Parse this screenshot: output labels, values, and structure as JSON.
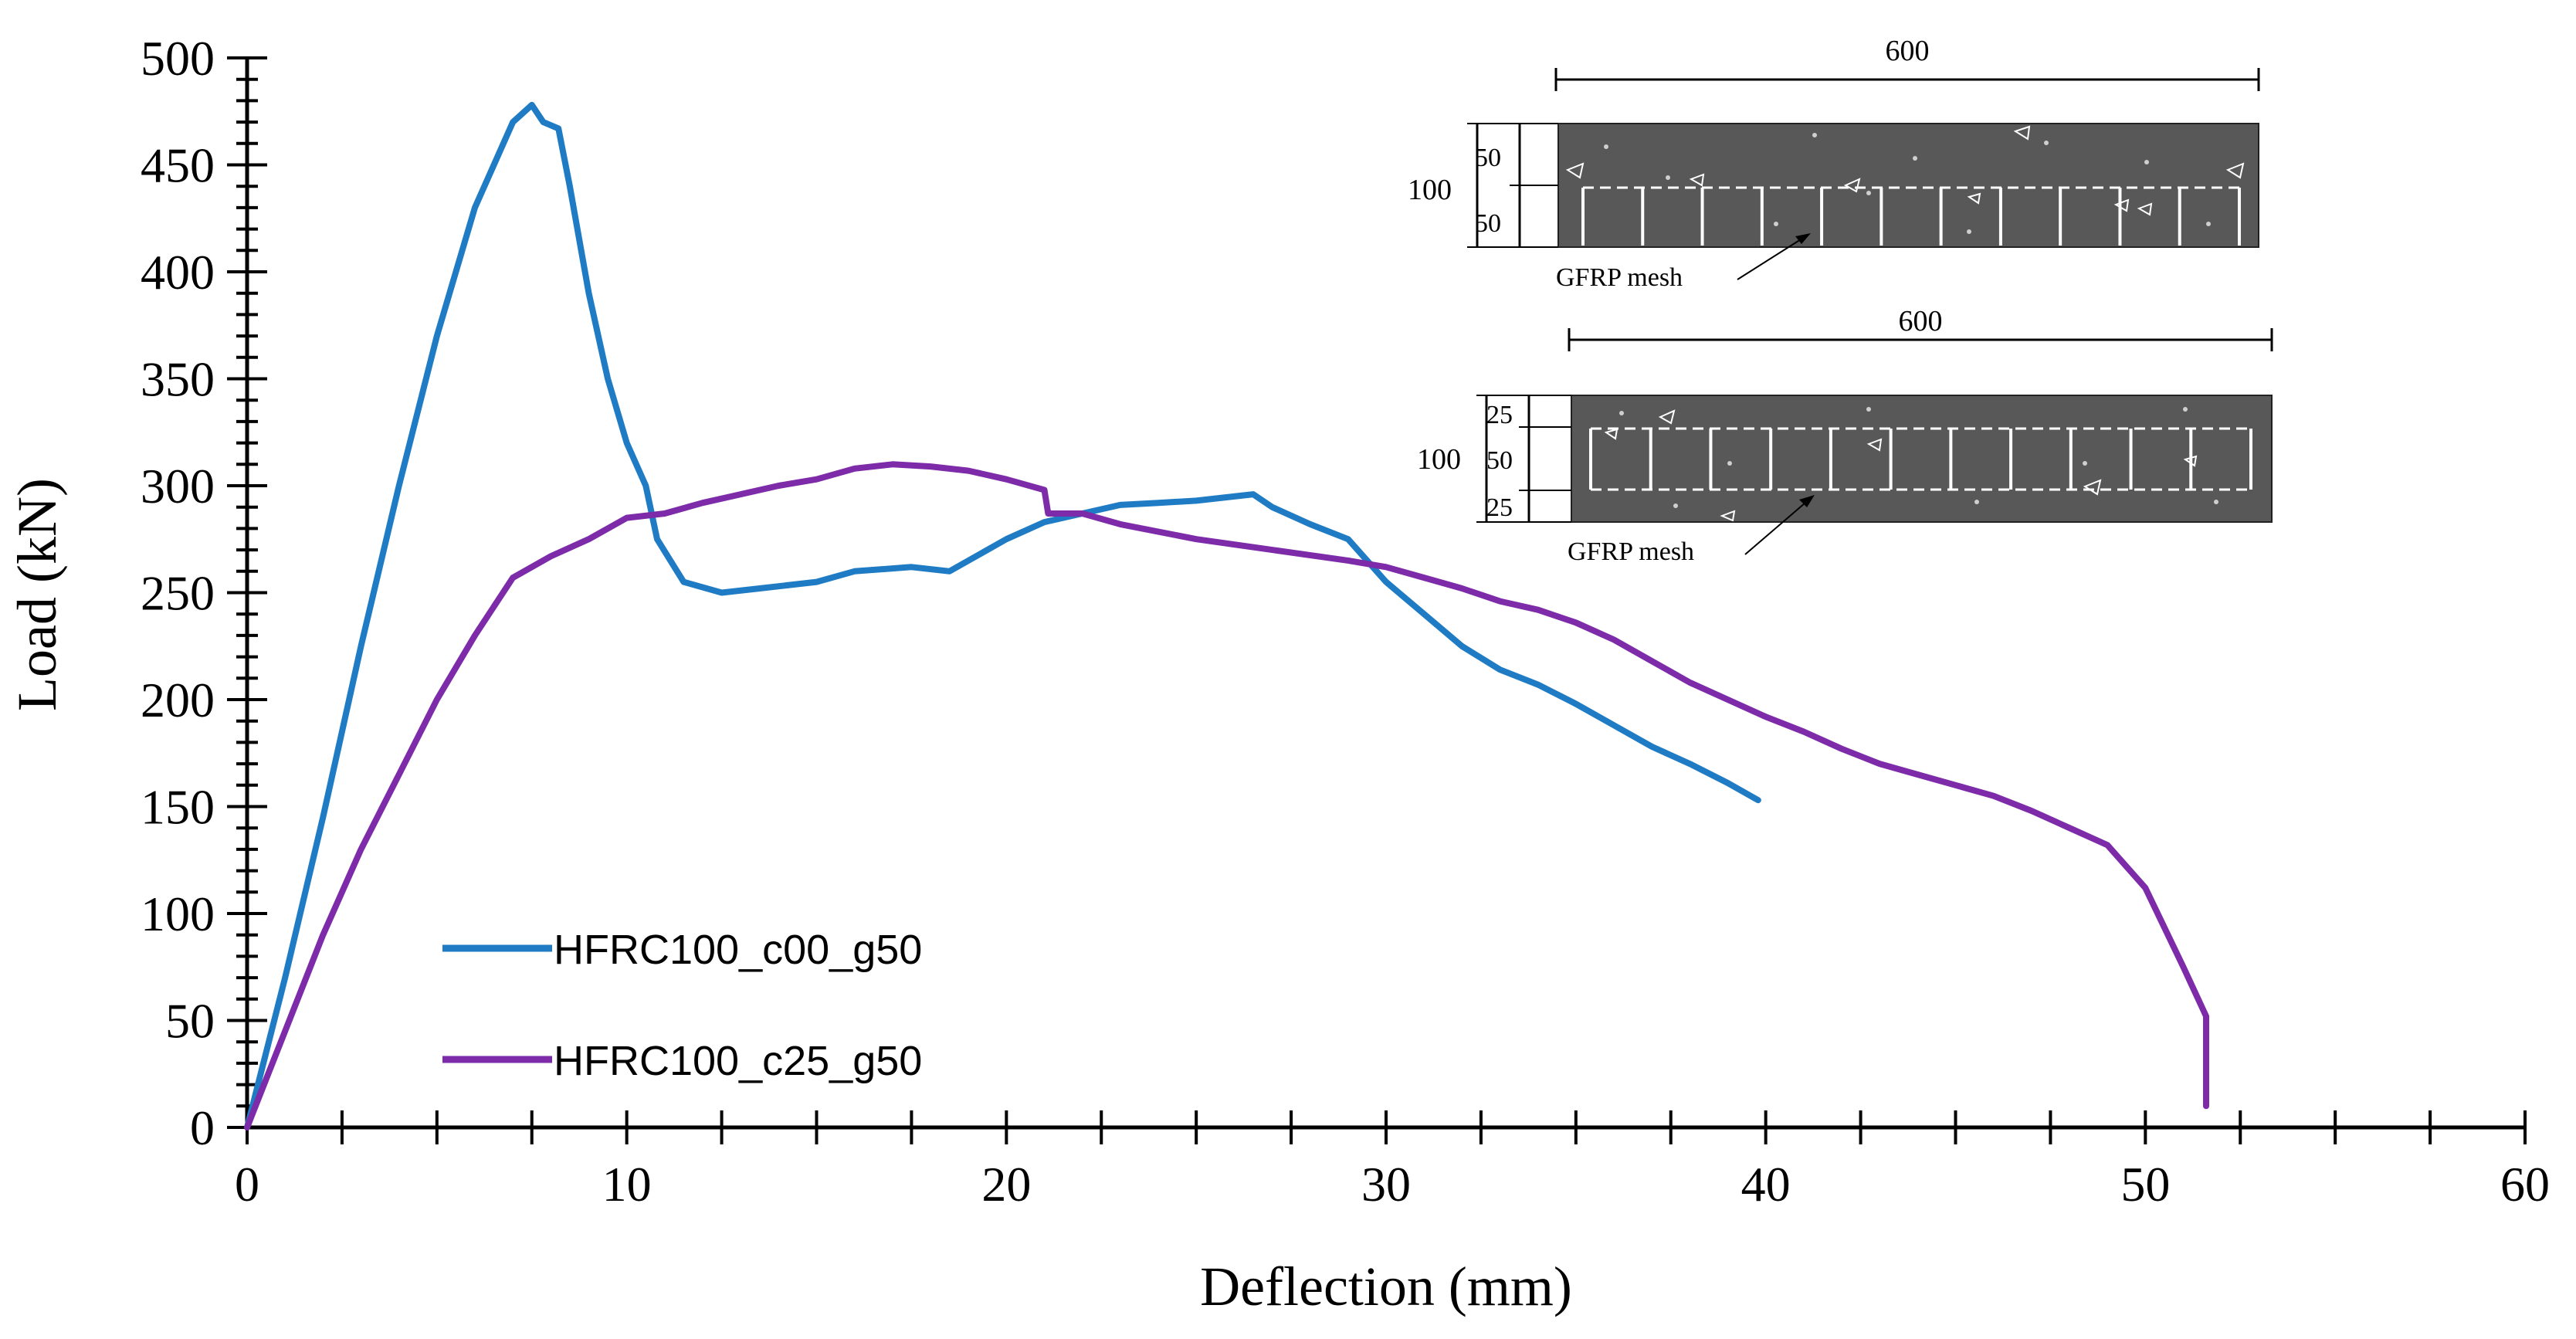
{
  "chart_data": {
    "type": "line",
    "title": "",
    "xlabel": "Deflection (mm)",
    "ylabel": "Load (kN)",
    "xlim": [
      0,
      60
    ],
    "ylim": [
      0,
      500
    ],
    "xticks": [
      "0",
      "10",
      "20",
      "30",
      "40",
      "50",
      "60"
    ],
    "yticks": [
      "0",
      "50",
      "100",
      "150",
      "200",
      "250",
      "300",
      "350",
      "400",
      "450",
      "500"
    ],
    "grid": false,
    "legend_position": "lower-left",
    "series": [
      {
        "name": "HFRC100_c00_g50",
        "color": "#1f7cc4",
        "x": [
          0,
          1,
          2,
          3,
          4,
          5,
          6,
          7,
          7.5,
          7.8,
          8.2,
          8.5,
          9.0,
          9.5,
          10.0,
          10.5,
          10.8,
          11.5,
          12.5,
          13.5,
          15,
          16,
          17.5,
          18.5,
          20,
          21,
          22,
          23,
          24,
          25,
          26,
          26.5,
          27,
          28,
          29,
          30,
          31,
          32,
          33,
          34,
          35,
          36,
          37,
          38,
          39,
          39.8
        ],
        "y": [
          0,
          70,
          145,
          225,
          300,
          370,
          430,
          470,
          478,
          470,
          467,
          440,
          390,
          350,
          320,
          300,
          275,
          255,
          250,
          252,
          255,
          260,
          262,
          260,
          275,
          283,
          287,
          291,
          292,
          293,
          295,
          296,
          290,
          282,
          275,
          255,
          240,
          225,
          214,
          207,
          198,
          188,
          178,
          170,
          161,
          153
        ]
      },
      {
        "name": "HFRC100_c25_g50",
        "color": "#7d2ba8",
        "x": [
          0,
          1,
          2,
          3,
          4,
          5,
          6,
          7,
          8,
          9,
          10,
          11,
          12,
          13,
          14,
          15,
          16,
          17,
          18,
          19,
          20,
          21,
          21.1,
          22,
          23,
          25,
          27,
          29,
          30,
          31,
          32,
          33,
          34,
          35,
          36,
          37,
          38,
          39,
          40,
          41,
          42,
          43,
          44,
          45,
          46,
          47,
          48,
          49,
          50,
          51,
          51.6,
          51.6
        ],
        "y": [
          0,
          45,
          90,
          130,
          165,
          200,
          230,
          257,
          267,
          275,
          285,
          287,
          292,
          296,
          300,
          303,
          308,
          310,
          309,
          307,
          303,
          298,
          287,
          287,
          282,
          275,
          270,
          265,
          262,
          257,
          252,
          246,
          242,
          236,
          228,
          218,
          208,
          200,
          192,
          185,
          177,
          170,
          165,
          160,
          155,
          148,
          140,
          132,
          112,
          75,
          52,
          10
        ]
      }
    ]
  },
  "inset": {
    "top": {
      "length_label": "600",
      "depth_label": "100",
      "cover_label": "50",
      "lower_label": "50",
      "mesh_label": "GFRP mesh"
    },
    "bottom": {
      "length_label": "600",
      "depth_label": "100",
      "cover_top_label": "25",
      "middle_label": "50",
      "cover_bottom_label": "25",
      "mesh_label": "GFRP mesh"
    },
    "colors": {
      "concrete": "#585858",
      "mesh": "#ffffff",
      "dim": "#000000"
    }
  }
}
